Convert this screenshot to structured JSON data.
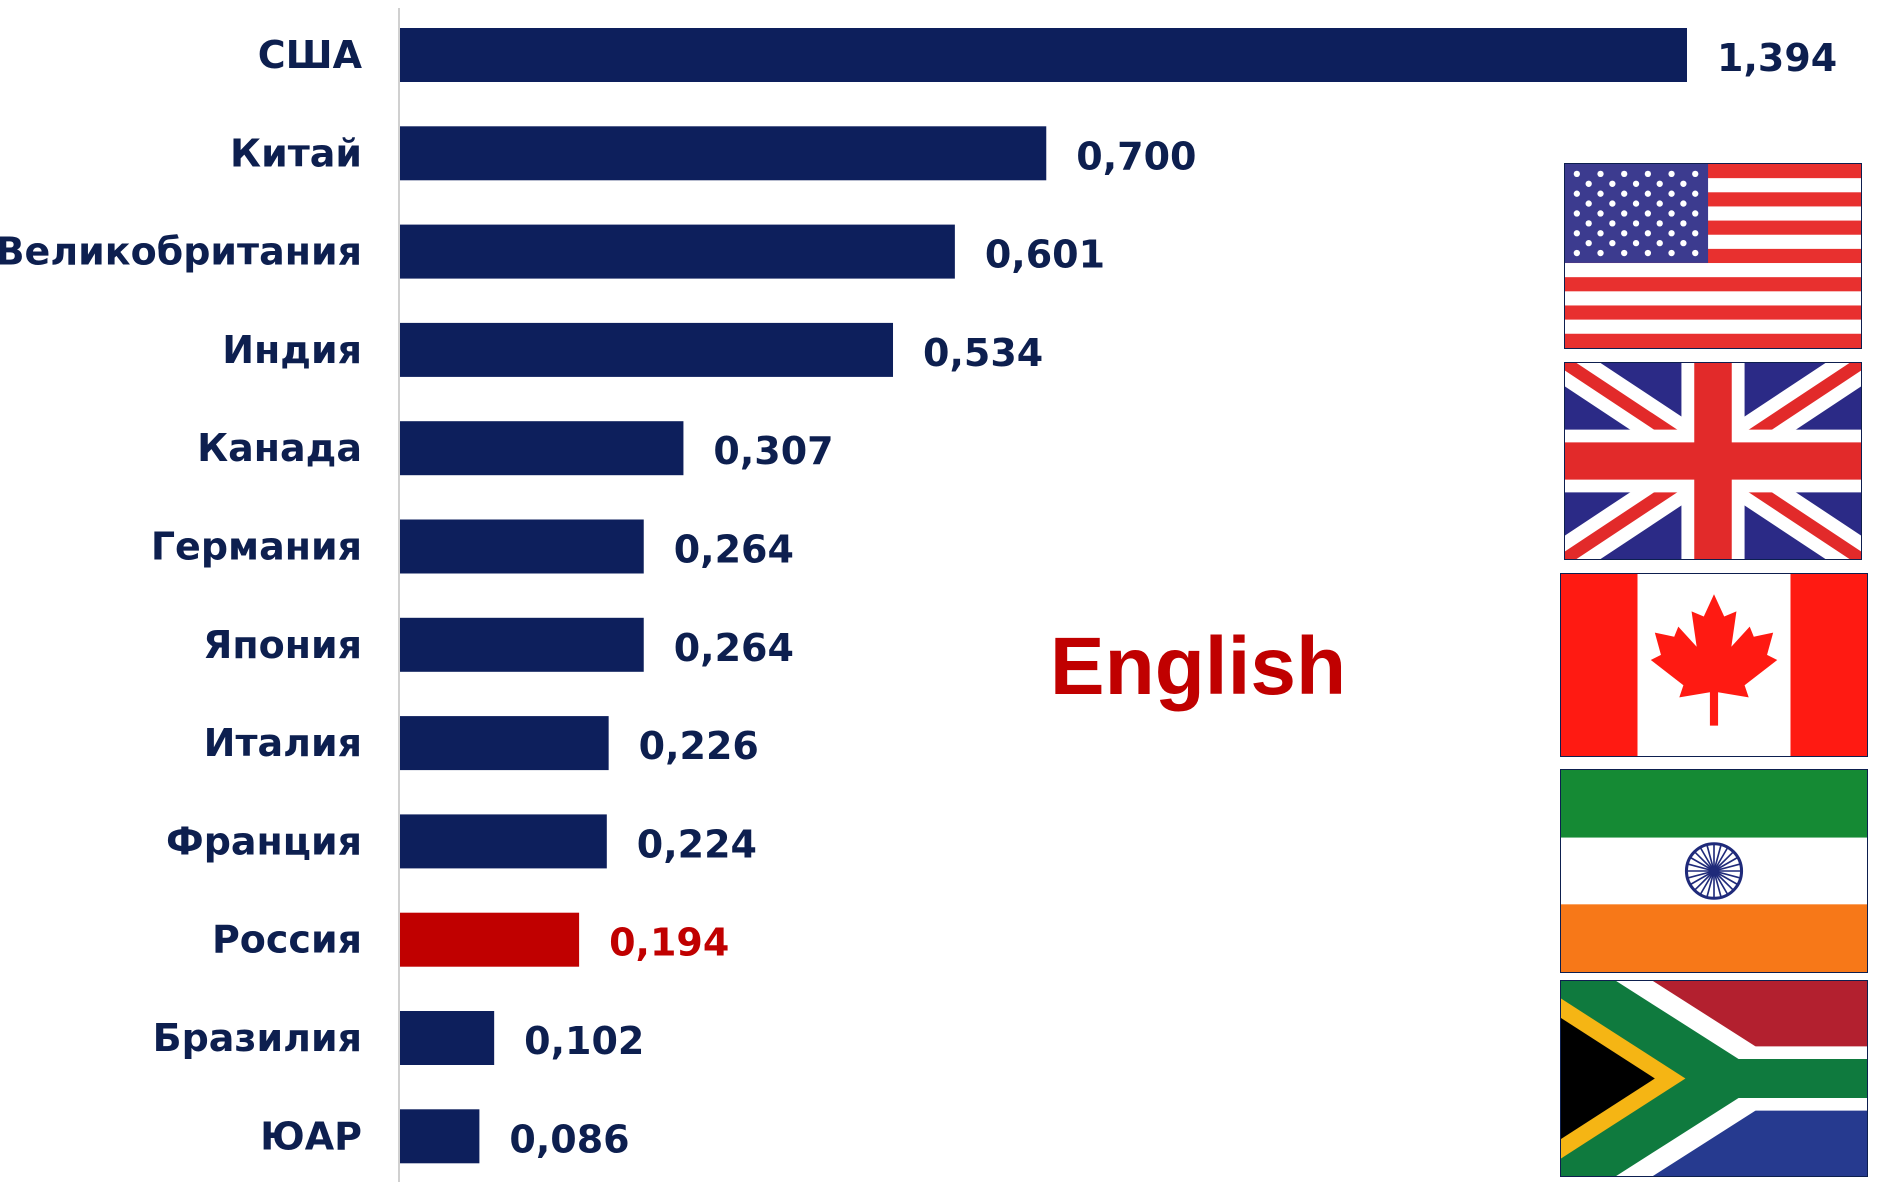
{
  "chart_data": {
    "type": "bar",
    "orientation": "horizontal",
    "categories": [
      "США",
      "Китай",
      "Великобритания",
      "Индия",
      "Канада",
      "Германия",
      "Япония",
      "Италия",
      "Франция",
      "Россия",
      "Бразилия",
      "ЮАР"
    ],
    "values": [
      1.394,
      0.7,
      0.601,
      0.534,
      0.307,
      0.264,
      0.264,
      0.226,
      0.224,
      0.194,
      0.102,
      0.086
    ],
    "value_labels": [
      "1,394",
      "0,700",
      "0,601",
      "0,534",
      "0,307",
      "0,264",
      "0,264",
      "0,226",
      "0,224",
      "0,194",
      "0,102",
      "0,086"
    ],
    "highlight_category": "Россия",
    "xlim": [
      0,
      1.394
    ],
    "grid": false,
    "title": "",
    "xlabel": "",
    "ylabel": "",
    "annotation": "English",
    "colors": {
      "bar": "#0d1f5c",
      "highlight": "#c00000",
      "label": "#0d1f4f",
      "annotation": "#c00000"
    }
  },
  "flags": [
    {
      "icon": "usa-flag-icon"
    },
    {
      "icon": "uk-flag-icon"
    },
    {
      "icon": "canada-flag-icon"
    },
    {
      "icon": "india-flag-icon"
    },
    {
      "icon": "south-africa-flag-icon"
    }
  ]
}
